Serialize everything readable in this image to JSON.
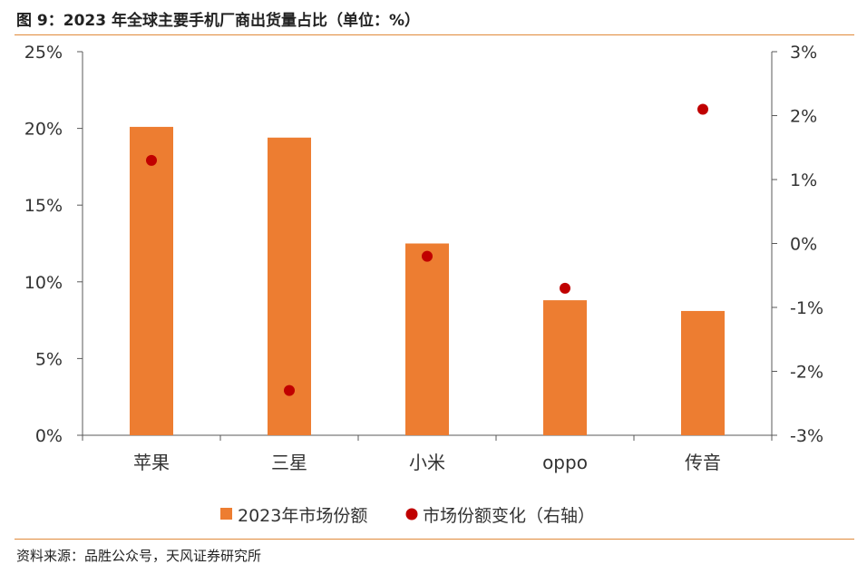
{
  "title": "图 9：2023 年全球主要手机厂商出货量占比（单位：%）",
  "source": "资料来源：品胜公众号，天风证券研究所",
  "colors": {
    "bar": "#ed7d31",
    "dot": "#c00000",
    "rule": "#e08a3a",
    "axis": "#595959"
  },
  "chart_data": {
    "type": "bar",
    "categories": [
      "苹果",
      "三星",
      "小米",
      "oppo",
      "传音"
    ],
    "series": [
      {
        "name": "2023年市场份额",
        "type": "bar",
        "axis": "left",
        "values": [
          20.1,
          19.4,
          12.5,
          8.8,
          8.1
        ]
      },
      {
        "name": "市场份额变化（右轴）",
        "type": "scatter",
        "axis": "right",
        "values": [
          1.3,
          -2.3,
          -0.2,
          -0.7,
          2.1
        ]
      }
    ],
    "y_left": {
      "lim": [
        0,
        25
      ],
      "ticks": [
        0,
        5,
        10,
        15,
        20,
        25
      ],
      "tick_labels": [
        "0%",
        "5%",
        "10%",
        "15%",
        "20%",
        "25%"
      ]
    },
    "y_right": {
      "lim": [
        -3,
        3
      ],
      "ticks": [
        -3,
        -2,
        -1,
        0,
        1,
        2,
        3
      ],
      "tick_labels": [
        "-3%",
        "-2%",
        "-1%",
        "0%",
        "1%",
        "2%",
        "3%"
      ]
    },
    "grid": false,
    "legend_position": "bottom"
  }
}
